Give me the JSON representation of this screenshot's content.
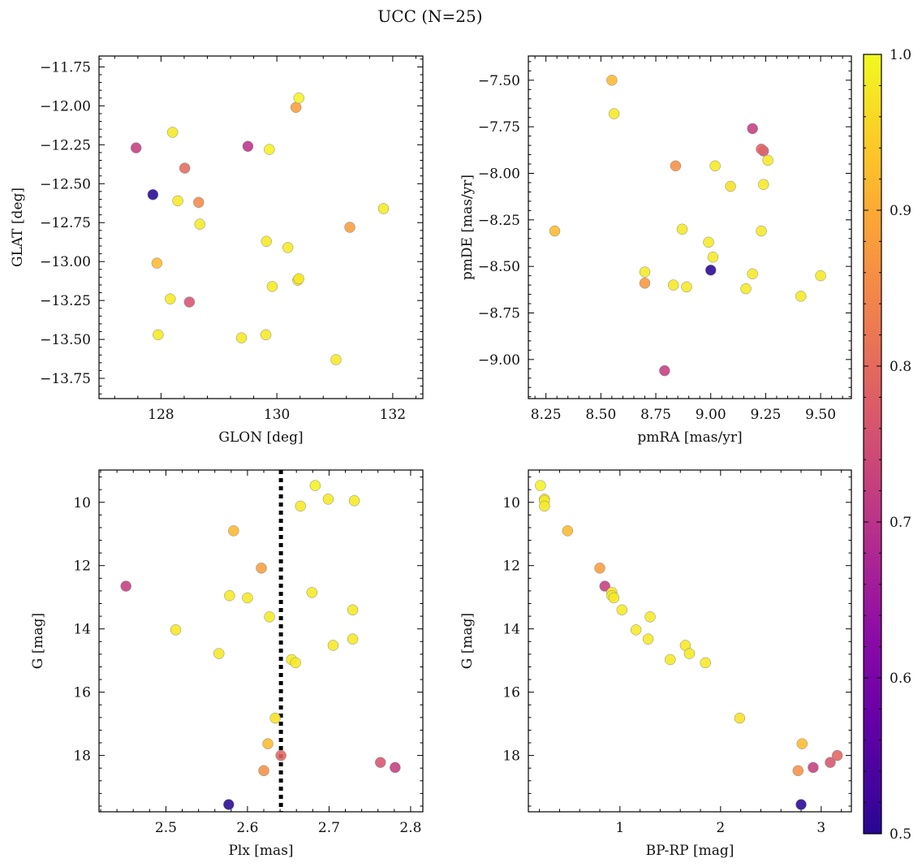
{
  "figure": {
    "title": "UCC (N=25)"
  },
  "colorbar": {
    "cmap": "plasma",
    "range": [
      0.5,
      1.0
    ],
    "ticks": [
      0.5,
      0.6,
      0.7,
      0.8,
      0.9,
      1.0
    ],
    "tick_labels": [
      "0.5",
      "0.6",
      "0.7",
      "0.8",
      "0.9",
      "1.0"
    ]
  },
  "chart_data": [
    {
      "type": "scatter",
      "id": "glon-glat",
      "xlabel": "GLON [deg]",
      "ylabel": "GLAT [deg]",
      "xlim": [
        126.93,
        132.52
      ],
      "ylim": [
        -13.88,
        -11.68
      ],
      "xticks": [
        128,
        130,
        132
      ],
      "xtick_labels": [
        "128",
        "130",
        "132"
      ],
      "yticks": [
        -11.75,
        -12.0,
        -12.25,
        -12.5,
        -12.75,
        -13.0,
        -13.25,
        -13.5,
        -13.75
      ],
      "ytick_labels": [
        "−11.75",
        "−12.00",
        "−12.25",
        "−12.50",
        "−12.75",
        "−13.00",
        "−13.25",
        "−13.50",
        "−13.75"
      ],
      "points": [
        {
          "x": 127.57,
          "y": -12.27,
          "c": 0.72
        },
        {
          "x": 127.86,
          "y": -12.57,
          "c": 0.5
        },
        {
          "x": 127.93,
          "y": -13.01,
          "c": 0.92
        },
        {
          "x": 127.95,
          "y": -13.47,
          "c": 0.98
        },
        {
          "x": 128.16,
          "y": -13.24,
          "c": 0.98
        },
        {
          "x": 128.2,
          "y": -12.17,
          "c": 0.98
        },
        {
          "x": 128.29,
          "y": -12.61,
          "c": 0.98
        },
        {
          "x": 128.41,
          "y": -12.4,
          "c": 0.8
        },
        {
          "x": 128.49,
          "y": -13.26,
          "c": 0.76
        },
        {
          "x": 128.65,
          "y": -12.62,
          "c": 0.85
        },
        {
          "x": 128.67,
          "y": -12.76,
          "c": 0.98
        },
        {
          "x": 129.39,
          "y": -13.49,
          "c": 0.98
        },
        {
          "x": 129.5,
          "y": -12.26,
          "c": 0.7
        },
        {
          "x": 129.81,
          "y": -13.47,
          "c": 0.98
        },
        {
          "x": 129.82,
          "y": -12.87,
          "c": 0.98
        },
        {
          "x": 129.87,
          "y": -12.28,
          "c": 0.99
        },
        {
          "x": 129.92,
          "y": -13.16,
          "c": 0.98
        },
        {
          "x": 130.19,
          "y": -12.91,
          "c": 0.98
        },
        {
          "x": 130.33,
          "y": -12.01,
          "c": 0.88
        },
        {
          "x": 130.36,
          "y": -13.12,
          "c": 0.97
        },
        {
          "x": 130.38,
          "y": -13.11,
          "c": 0.98
        },
        {
          "x": 130.38,
          "y": -11.95,
          "c": 0.99
        },
        {
          "x": 131.02,
          "y": -13.63,
          "c": 0.98
        },
        {
          "x": 131.26,
          "y": -12.78,
          "c": 0.88
        },
        {
          "x": 131.84,
          "y": -12.66,
          "c": 0.98
        }
      ]
    },
    {
      "type": "scatter",
      "id": "pmra-pmde",
      "xlabel": "pmRA [mas/yr]",
      "ylabel": "pmDE [mas/yr]",
      "xlim": [
        8.17,
        9.64
      ],
      "ylim": [
        -9.21,
        -7.37
      ],
      "xticks": [
        8.25,
        8.5,
        8.75,
        9.0,
        9.25,
        9.5
      ],
      "xtick_labels": [
        "8.25",
        "8.50",
        "8.75",
        "9.00",
        "9.25",
        "9.50"
      ],
      "yticks": [
        -7.5,
        -7.75,
        -8.0,
        -8.25,
        -8.5,
        -8.75,
        -9.0
      ],
      "ytick_labels": [
        "−7.50",
        "−7.75",
        "−8.00",
        "−8.25",
        "−8.50",
        "−8.75",
        "−9.00"
      ],
      "points": [
        {
          "x": 8.29,
          "y": -8.31,
          "c": 0.92
        },
        {
          "x": 8.55,
          "y": -7.5,
          "c": 0.92
        },
        {
          "x": 8.56,
          "y": -7.68,
          "c": 0.98
        },
        {
          "x": 8.7,
          "y": -8.53,
          "c": 0.98
        },
        {
          "x": 8.7,
          "y": -8.59,
          "c": 0.87
        },
        {
          "x": 8.79,
          "y": -9.06,
          "c": 0.72
        },
        {
          "x": 8.83,
          "y": -8.6,
          "c": 0.98
        },
        {
          "x": 8.84,
          "y": -7.96,
          "c": 0.86
        },
        {
          "x": 8.87,
          "y": -8.3,
          "c": 0.98
        },
        {
          "x": 8.89,
          "y": -8.61,
          "c": 0.98
        },
        {
          "x": 8.99,
          "y": -8.37,
          "c": 0.98
        },
        {
          "x": 9.0,
          "y": -8.52,
          "c": 0.5
        },
        {
          "x": 9.01,
          "y": -8.45,
          "c": 0.98
        },
        {
          "x": 9.02,
          "y": -7.96,
          "c": 0.98
        },
        {
          "x": 9.09,
          "y": -8.07,
          "c": 0.97
        },
        {
          "x": 9.16,
          "y": -8.62,
          "c": 0.98
        },
        {
          "x": 9.19,
          "y": -7.76,
          "c": 0.72
        },
        {
          "x": 9.19,
          "y": -8.54,
          "c": 0.98
        },
        {
          "x": 9.23,
          "y": -8.31,
          "c": 0.98
        },
        {
          "x": 9.23,
          "y": -7.87,
          "c": 0.79
        },
        {
          "x": 9.24,
          "y": -8.06,
          "c": 0.98
        },
        {
          "x": 9.26,
          "y": -7.93,
          "c": 0.98
        },
        {
          "x": 9.41,
          "y": -8.66,
          "c": 0.98
        },
        {
          "x": 9.5,
          "y": -8.55,
          "c": 0.98
        },
        {
          "x": 9.24,
          "y": -7.88,
          "c": 0.76
        }
      ]
    },
    {
      "type": "scatter",
      "id": "plx-g",
      "xlabel": "Plx [mas]",
      "ylabel": "G [mag]",
      "xlim": [
        2.418,
        2.815
      ],
      "ylim": [
        19.78,
        8.98
      ],
      "y_inverted": true,
      "vline": 2.641,
      "vline_style": "dotted",
      "xticks": [
        2.5,
        2.6,
        2.7,
        2.8
      ],
      "xtick_labels": [
        "2.5",
        "2.6",
        "2.7",
        "2.8"
      ],
      "yticks": [
        10,
        12,
        14,
        16,
        18
      ],
      "ytick_labels": [
        "10",
        "12",
        "14",
        "16",
        "18"
      ],
      "points": [
        {
          "x": 2.451,
          "y": 12.65,
          "c": 0.72
        },
        {
          "x": 2.512,
          "y": 14.03,
          "c": 0.98
        },
        {
          "x": 2.565,
          "y": 14.78,
          "c": 0.98
        },
        {
          "x": 2.577,
          "y": 19.55,
          "c": 0.5
        },
        {
          "x": 2.578,
          "y": 12.95,
          "c": 0.98
        },
        {
          "x": 2.583,
          "y": 10.9,
          "c": 0.92
        },
        {
          "x": 2.6,
          "y": 13.02,
          "c": 0.98
        },
        {
          "x": 2.617,
          "y": 12.08,
          "c": 0.88
        },
        {
          "x": 2.62,
          "y": 18.48,
          "c": 0.86
        },
        {
          "x": 2.625,
          "y": 17.63,
          "c": 0.92
        },
        {
          "x": 2.627,
          "y": 13.62,
          "c": 0.98
        },
        {
          "x": 2.634,
          "y": 16.82,
          "c": 0.97
        },
        {
          "x": 2.641,
          "y": 18.0,
          "c": 0.79
        },
        {
          "x": 2.654,
          "y": 14.97,
          "c": 0.98
        },
        {
          "x": 2.659,
          "y": 15.07,
          "c": 0.98
        },
        {
          "x": 2.665,
          "y": 10.12,
          "c": 0.98
        },
        {
          "x": 2.679,
          "y": 12.85,
          "c": 0.98
        },
        {
          "x": 2.683,
          "y": 9.47,
          "c": 0.99
        },
        {
          "x": 2.699,
          "y": 9.9,
          "c": 0.98
        },
        {
          "x": 2.705,
          "y": 14.52,
          "c": 0.98
        },
        {
          "x": 2.729,
          "y": 13.4,
          "c": 0.98
        },
        {
          "x": 2.729,
          "y": 14.32,
          "c": 0.98
        },
        {
          "x": 2.731,
          "y": 9.95,
          "c": 0.98
        },
        {
          "x": 2.763,
          "y": 18.22,
          "c": 0.76
        },
        {
          "x": 2.781,
          "y": 18.38,
          "c": 0.72
        }
      ]
    },
    {
      "type": "scatter",
      "id": "bprp-g",
      "xlabel": "BP-RP [mag]",
      "ylabel": "G [mag]",
      "xlim": [
        0.09,
        3.3
      ],
      "ylim": [
        19.78,
        8.98
      ],
      "y_inverted": true,
      "xticks": [
        1,
        2,
        3
      ],
      "xtick_labels": [
        "1",
        "2",
        "3"
      ],
      "yticks": [
        10,
        12,
        14,
        16,
        18
      ],
      "ytick_labels": [
        "10",
        "12",
        "14",
        "16",
        "18"
      ],
      "points": [
        {
          "x": 0.21,
          "y": 9.47,
          "c": 0.99
        },
        {
          "x": 0.25,
          "y": 9.9,
          "c": 0.98
        },
        {
          "x": 0.25,
          "y": 9.95,
          "c": 0.98
        },
        {
          "x": 0.25,
          "y": 10.12,
          "c": 0.98
        },
        {
          "x": 0.48,
          "y": 10.9,
          "c": 0.92
        },
        {
          "x": 0.8,
          "y": 12.08,
          "c": 0.88
        },
        {
          "x": 0.85,
          "y": 12.65,
          "c": 0.72
        },
        {
          "x": 0.92,
          "y": 12.85,
          "c": 0.98
        },
        {
          "x": 0.92,
          "y": 12.95,
          "c": 0.98
        },
        {
          "x": 0.94,
          "y": 13.02,
          "c": 0.98
        },
        {
          "x": 1.02,
          "y": 13.4,
          "c": 0.98
        },
        {
          "x": 1.16,
          "y": 14.03,
          "c": 0.98
        },
        {
          "x": 1.28,
          "y": 14.32,
          "c": 0.98
        },
        {
          "x": 1.3,
          "y": 13.62,
          "c": 0.98
        },
        {
          "x": 1.5,
          "y": 14.97,
          "c": 0.98
        },
        {
          "x": 1.65,
          "y": 14.52,
          "c": 0.98
        },
        {
          "x": 1.69,
          "y": 14.78,
          "c": 0.98
        },
        {
          "x": 1.85,
          "y": 15.07,
          "c": 0.98
        },
        {
          "x": 2.19,
          "y": 16.82,
          "c": 0.97
        },
        {
          "x": 2.77,
          "y": 18.48,
          "c": 0.86
        },
        {
          "x": 2.81,
          "y": 17.63,
          "c": 0.92
        },
        {
          "x": 2.8,
          "y": 19.55,
          "c": 0.5
        },
        {
          "x": 2.92,
          "y": 18.38,
          "c": 0.72
        },
        {
          "x": 3.09,
          "y": 18.22,
          "c": 0.76
        },
        {
          "x": 3.16,
          "y": 18.0,
          "c": 0.79
        }
      ]
    }
  ]
}
